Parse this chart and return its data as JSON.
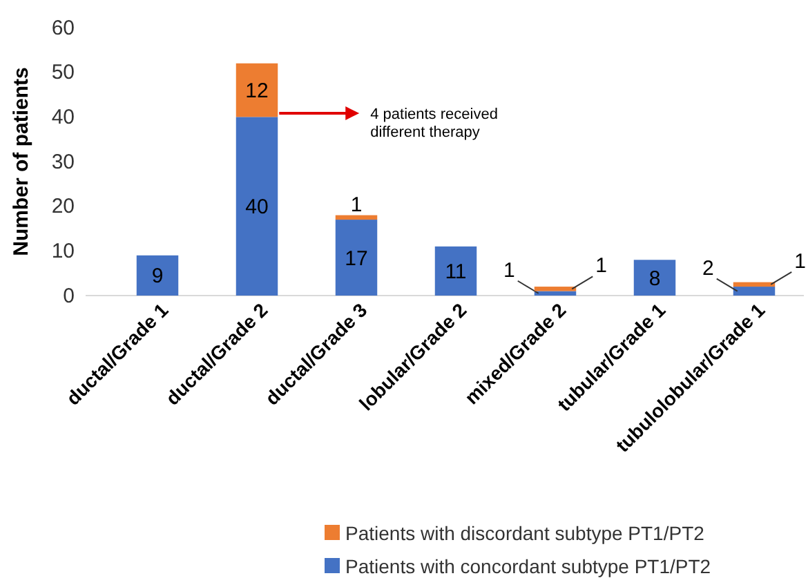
{
  "chart_data": {
    "type": "bar",
    "ylabel": "Number of patients",
    "stacked": true,
    "legend": "bottom",
    "categories": [
      "ductal/Grade 1",
      "ductal/Grade 2",
      "ductal/Grade 3",
      "lobular/Grade 2",
      "mixed/Grade 2",
      "tubular/Grade 1",
      "tubulolobular/Grade 1"
    ],
    "series": [
      {
        "name": "Patients with concordant subtype PT1/PT2",
        "color": "#4472c4",
        "values": [
          9,
          40,
          17,
          11,
          1,
          8,
          2
        ],
        "value_labels": [
          "9",
          "40",
          "17",
          "11",
          "1",
          "8",
          "2"
        ]
      },
      {
        "name": "Patients with discordant subtype PT1/PT2",
        "color": "#ed7d31",
        "values": [
          0,
          12,
          1,
          0,
          1,
          0,
          1
        ],
        "value_labels": [
          null,
          "12",
          "1",
          null,
          "1",
          null,
          "1"
        ]
      }
    ],
    "ylim": [
      0,
      60
    ],
    "yticks": [
      0,
      10,
      20,
      30,
      40,
      50,
      60
    ],
    "annotations": [
      "4 patients received different therapy"
    ]
  }
}
